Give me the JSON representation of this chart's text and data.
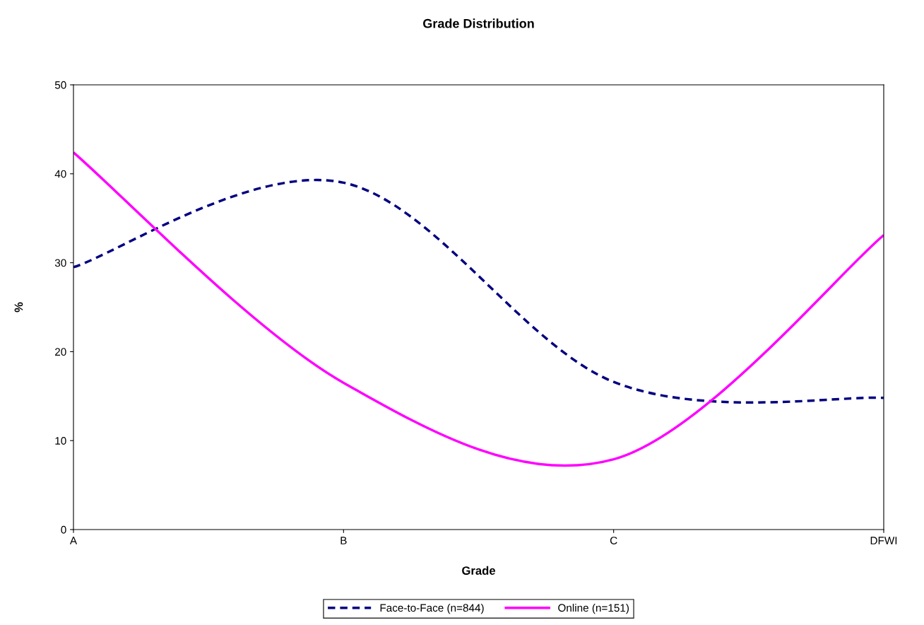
{
  "chart_data": {
    "type": "line",
    "title": "Grade Distribution",
    "xlabel": "Grade",
    "ylabel": "%",
    "categories": [
      "A",
      "B",
      "C",
      "DFWI"
    ],
    "series": [
      {
        "name": "Face-to-Face (n=844)",
        "color": "#000080",
        "line_style": "dashed",
        "values": [
          29.5,
          39.0,
          16.6,
          14.8
        ]
      },
      {
        "name": "Online (n=151)",
        "color": "#ff00ff",
        "line_style": "solid",
        "values": [
          42.4,
          16.5,
          7.9,
          33.1
        ]
      }
    ],
    "ylim": [
      0,
      50
    ],
    "yticks": [
      0,
      10,
      20,
      30,
      40,
      50
    ],
    "grid": false,
    "legend": "bottom",
    "marker": "none"
  }
}
